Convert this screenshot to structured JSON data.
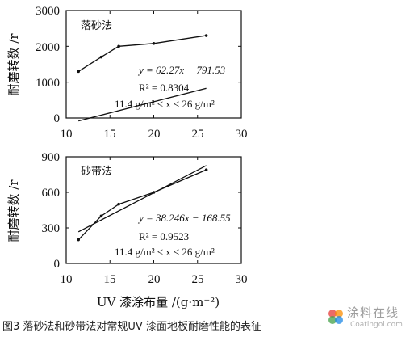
{
  "figure_caption": "图3 落砂法和砂带法对常规UV 漆面地板耐磨性能的表征",
  "shared_xlabel": "UV 漆涂布量 /(g·m⁻²)",
  "watermark": {
    "name": "涂料在线",
    "url": "Coatingol.com",
    "colors": [
      "#e53935",
      "#fb8c00",
      "#43a047",
      "#1e88e5"
    ]
  },
  "chart_data": [
    {
      "type": "line",
      "title": "落砂法",
      "ylabel": "耐磨转数 /r",
      "xlim": [
        10,
        30
      ],
      "ylim": [
        0,
        3000
      ],
      "x_ticks": [
        10,
        15,
        20,
        25,
        30
      ],
      "y_ticks": [
        0,
        1000,
        2000,
        3000
      ],
      "grid": false,
      "series": [
        {
          "kind": "measured",
          "x": [
            11.4,
            14,
            16,
            20,
            26
          ],
          "y": [
            1300,
            1700,
            2000,
            2080,
            2300
          ]
        },
        {
          "kind": "linear-fit",
          "slope": 62.27,
          "intercept": -791.53,
          "x_range": [
            11.4,
            26
          ]
        }
      ],
      "annotations": {
        "equation": "y = 62.27x − 791.53",
        "r2": "R² = 0.8304",
        "range": "11.4 g/m² ≤ x ≤ 26 g/m²"
      }
    },
    {
      "type": "line",
      "title": "砂带法",
      "ylabel": "耐磨转数 /r",
      "xlim": [
        10,
        30
      ],
      "ylim": [
        0,
        900
      ],
      "x_ticks": [
        10,
        15,
        20,
        25,
        30
      ],
      "y_ticks": [
        0,
        300,
        600,
        900
      ],
      "grid": false,
      "series": [
        {
          "kind": "measured",
          "x": [
            11.4,
            14,
            16,
            20,
            26
          ],
          "y": [
            200,
            400,
            500,
            600,
            790
          ]
        },
        {
          "kind": "linear-fit",
          "slope": 38.246,
          "intercept": -168.55,
          "x_range": [
            11.4,
            26
          ]
        }
      ],
      "annotations": {
        "equation": "y = 38.246x − 168.55",
        "r2": "R² = 0.9523",
        "range": "11.4 g/m² ≤ x ≤ 26 g/m²"
      }
    }
  ]
}
